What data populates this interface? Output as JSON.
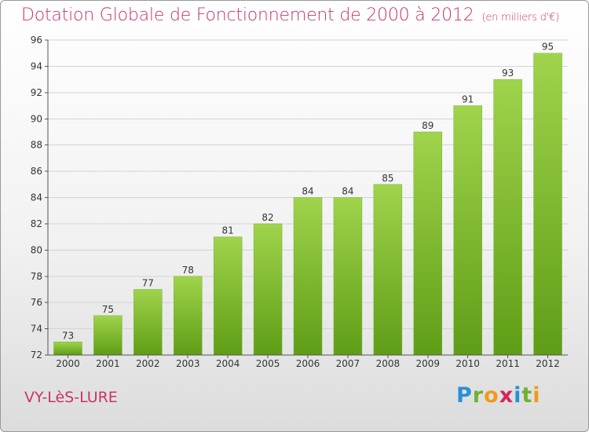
{
  "header": {
    "title": "Dotation Globale de Fonctionnement de 2000 à 2012",
    "subtitle": "(en milliers d'€)"
  },
  "footer": {
    "place": "VY-LèS-LURE",
    "logo": "Proxiti"
  },
  "colors": {
    "title": "#c8336c",
    "bar_light": "#9fd44c",
    "bar_dark": "#5f9d16"
  },
  "chart_data": {
    "type": "bar",
    "title": "Dotation Globale de Fonctionnement de 2000 à 2012",
    "subtitle": "(en milliers d'€)",
    "categories": [
      "2000",
      "2001",
      "2002",
      "2003",
      "2004",
      "2005",
      "2006",
      "2007",
      "2008",
      "2009",
      "2010",
      "2011",
      "2012"
    ],
    "values": [
      73,
      75,
      77,
      78,
      81,
      82,
      84,
      84,
      85,
      89,
      91,
      93,
      95
    ],
    "ylim": [
      72,
      96
    ],
    "yticks": [
      72,
      74,
      76,
      78,
      80,
      82,
      84,
      86,
      88,
      90,
      92,
      94,
      96
    ],
    "grid": true,
    "data_labels": true,
    "legend": "none"
  }
}
